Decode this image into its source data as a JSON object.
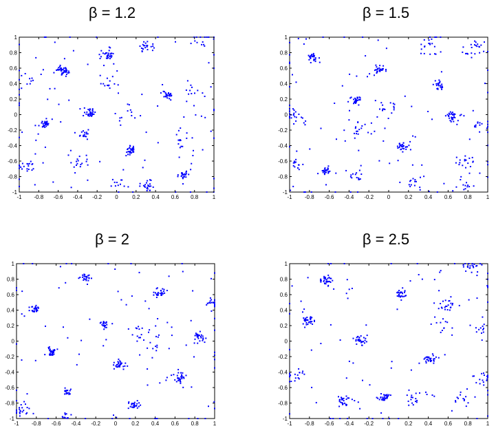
{
  "colors": {
    "points": "#0000ff",
    "axes": "#000000",
    "background": "#ffffff"
  },
  "chart_data": [
    {
      "type": "scatter",
      "title": "β = 1.2",
      "xlim": [
        -1,
        1
      ],
      "ylim": [
        -1,
        1
      ],
      "xticks": [
        "-1",
        "-0.8",
        "-0.6",
        "-0.4",
        "-0.2",
        "0",
        "0.2",
        "0.4",
        "0.6",
        "0.8",
        "1"
      ],
      "yticks": [
        "1",
        "0.8",
        "0.6",
        "0.4",
        "0.2",
        "0",
        "-0.2",
        "-0.4",
        "-0.6",
        "-0.8",
        "-1"
      ],
      "grid": false,
      "clusters": [
        {
          "x": -0.55,
          "y": 0.57,
          "count": 40,
          "spread": 0.03
        },
        {
          "x": -0.1,
          "y": 0.78,
          "count": 30,
          "spread": 0.04
        },
        {
          "x": 0.28,
          "y": 0.86,
          "count": 22,
          "spread": 0.04
        },
        {
          "x": -0.08,
          "y": 0.43,
          "count": 12,
          "spread": 0.05
        },
        {
          "x": 0.52,
          "y": 0.25,
          "count": 25,
          "spread": 0.025
        },
        {
          "x": -0.28,
          "y": 0.03,
          "count": 30,
          "spread": 0.03
        },
        {
          "x": -0.73,
          "y": -0.12,
          "count": 35,
          "spread": 0.025
        },
        {
          "x": -0.32,
          "y": -0.26,
          "count": 15,
          "spread": 0.03
        },
        {
          "x": 0.15,
          "y": -0.46,
          "count": 30,
          "spread": 0.03
        },
        {
          "x": -0.4,
          "y": -0.62,
          "count": 15,
          "spread": 0.05
        },
        {
          "x": -0.92,
          "y": -0.67,
          "count": 18,
          "spread": 0.04
        },
        {
          "x": 0.32,
          "y": -0.91,
          "count": 22,
          "spread": 0.04
        },
        {
          "x": 0.7,
          "y": -0.78,
          "count": 22,
          "spread": 0.03
        },
        {
          "x": 0.78,
          "y": 0.32,
          "count": 10,
          "spread": 0.08
        },
        {
          "x": 0.1,
          "y": 0.05,
          "count": 10,
          "spread": 0.07
        },
        {
          "x": 0.68,
          "y": -0.3,
          "count": 14,
          "spread": 0.06
        },
        {
          "x": 0.0,
          "y": -0.9,
          "count": 10,
          "spread": 0.05
        },
        {
          "x": -0.9,
          "y": 0.45,
          "count": 8,
          "spread": 0.05
        },
        {
          "x": 0.85,
          "y": 0.95,
          "count": 14,
          "spread": 0.06
        }
      ],
      "scatter_points": 70
    },
    {
      "type": "scatter",
      "title": "β = 1.5",
      "xlim": [
        -1,
        1
      ],
      "ylim": [
        -1,
        1
      ],
      "xticks": [
        "-1",
        "-0.8",
        "-0.6",
        "-0.4",
        "-0.2",
        "0",
        "0.2",
        "0.4",
        "0.6",
        "0.8",
        "1"
      ],
      "yticks": [
        "1",
        "0.8",
        "0.6",
        "0.4",
        "0.2",
        "0",
        "-0.2",
        "-0.4",
        "-0.6",
        "-0.8",
        "-1"
      ],
      "grid": false,
      "clusters": [
        {
          "x": -0.77,
          "y": 0.74,
          "count": 25,
          "spread": 0.03
        },
        {
          "x": -0.1,
          "y": 0.57,
          "count": 30,
          "spread": 0.03
        },
        {
          "x": 0.4,
          "y": 0.9,
          "count": 18,
          "spread": 0.05
        },
        {
          "x": 0.85,
          "y": 0.85,
          "count": 20,
          "spread": 0.06
        },
        {
          "x": 0.52,
          "y": 0.38,
          "count": 22,
          "spread": 0.03
        },
        {
          "x": -0.33,
          "y": 0.19,
          "count": 30,
          "spread": 0.03
        },
        {
          "x": 0.0,
          "y": 0.1,
          "count": 15,
          "spread": 0.06
        },
        {
          "x": 0.62,
          "y": -0.02,
          "count": 30,
          "spread": 0.035
        },
        {
          "x": -0.3,
          "y": -0.22,
          "count": 18,
          "spread": 0.08
        },
        {
          "x": 0.15,
          "y": -0.41,
          "count": 28,
          "spread": 0.03
        },
        {
          "x": -0.62,
          "y": -0.72,
          "count": 25,
          "spread": 0.025
        },
        {
          "x": -0.3,
          "y": -0.78,
          "count": 12,
          "spread": 0.05
        },
        {
          "x": 0.25,
          "y": -0.88,
          "count": 14,
          "spread": 0.05
        },
        {
          "x": 0.75,
          "y": -0.6,
          "count": 16,
          "spread": 0.05
        },
        {
          "x": 0.75,
          "y": -0.92,
          "count": 12,
          "spread": 0.05
        },
        {
          "x": -0.95,
          "y": 0.0,
          "count": 20,
          "spread": 0.05
        },
        {
          "x": -0.92,
          "y": -0.65,
          "count": 12,
          "spread": 0.04
        },
        {
          "x": 0.9,
          "y": -0.15,
          "count": 12,
          "spread": 0.06
        }
      ],
      "scatter_points": 70
    },
    {
      "type": "scatter",
      "title": "β = 2",
      "xlim": [
        -1,
        1
      ],
      "ylim": [
        -1,
        1
      ],
      "xticks": [
        "-1",
        "-0.8",
        "-0.6",
        "-0.4",
        "-0.2",
        "0",
        "0.2",
        "0.4",
        "0.6",
        "0.8",
        "1"
      ],
      "yticks": [
        "1",
        "0.8",
        "0.6",
        "0.4",
        "0.2",
        "0",
        "-0.2",
        "-0.4",
        "-0.6",
        "-0.8",
        "-1"
      ],
      "grid": false,
      "clusters": [
        {
          "x": -0.3,
          "y": 0.83,
          "count": 22,
          "spread": 0.025
        },
        {
          "x": 0.44,
          "y": 0.63,
          "count": 28,
          "spread": 0.03
        },
        {
          "x": -0.82,
          "y": 0.41,
          "count": 28,
          "spread": 0.025
        },
        {
          "x": -0.12,
          "y": 0.22,
          "count": 20,
          "spread": 0.025
        },
        {
          "x": 0.28,
          "y": 0.1,
          "count": 18,
          "spread": 0.06
        },
        {
          "x": 0.85,
          "y": 0.05,
          "count": 28,
          "spread": 0.035
        },
        {
          "x": -0.65,
          "y": -0.13,
          "count": 30,
          "spread": 0.03
        },
        {
          "x": 0.03,
          "y": -0.3,
          "count": 30,
          "spread": 0.035
        },
        {
          "x": 0.65,
          "y": -0.48,
          "count": 28,
          "spread": 0.035
        },
        {
          "x": -0.48,
          "y": -0.65,
          "count": 20,
          "spread": 0.025
        },
        {
          "x": 0.2,
          "y": -0.83,
          "count": 25,
          "spread": 0.03
        },
        {
          "x": -0.5,
          "y": -0.98,
          "count": 10,
          "spread": 0.02
        },
        {
          "x": -0.97,
          "y": -0.9,
          "count": 20,
          "spread": 0.04
        },
        {
          "x": 0.98,
          "y": 0.5,
          "count": 20,
          "spread": 0.03
        },
        {
          "x": 0.4,
          "y": -0.1,
          "count": 8,
          "spread": 0.06
        }
      ],
      "scatter_points": 60
    },
    {
      "type": "scatter",
      "title": "β = 2.5",
      "xlim": [
        -1,
        1
      ],
      "ylim": [
        -1,
        1
      ],
      "xticks": [
        "-1",
        "-0.8",
        "-0.6",
        "-0.4",
        "-0.2",
        "0",
        "0.2",
        "0.4",
        "0.6",
        "0.8",
        "1"
      ],
      "yticks": [
        "1",
        "0.8",
        "0.6",
        "0.4",
        "0.2",
        "0",
        "-0.2",
        "-0.4",
        "-0.6",
        "-0.8",
        "-1"
      ],
      "grid": false,
      "clusters": [
        {
          "x": -0.62,
          "y": 0.79,
          "count": 30,
          "spread": 0.035
        },
        {
          "x": 0.13,
          "y": 0.61,
          "count": 28,
          "spread": 0.03
        },
        {
          "x": 0.58,
          "y": 0.47,
          "count": 20,
          "spread": 0.04
        },
        {
          "x": -0.82,
          "y": 0.27,
          "count": 30,
          "spread": 0.035
        },
        {
          "x": -0.27,
          "y": 0.01,
          "count": 28,
          "spread": 0.03
        },
        {
          "x": 0.42,
          "y": -0.22,
          "count": 30,
          "spread": 0.035
        },
        {
          "x": -0.45,
          "y": -0.78,
          "count": 28,
          "spread": 0.04
        },
        {
          "x": -0.05,
          "y": -0.73,
          "count": 30,
          "spread": 0.03
        },
        {
          "x": 0.25,
          "y": -0.72,
          "count": 16,
          "spread": 0.05
        },
        {
          "x": 0.75,
          "y": -0.75,
          "count": 14,
          "spread": 0.06
        },
        {
          "x": 0.85,
          "y": 0.98,
          "count": 22,
          "spread": 0.05
        },
        {
          "x": 0.9,
          "y": 0.15,
          "count": 12,
          "spread": 0.06
        },
        {
          "x": -0.95,
          "y": -0.45,
          "count": 18,
          "spread": 0.05
        },
        {
          "x": 0.95,
          "y": -0.5,
          "count": 16,
          "spread": 0.04
        },
        {
          "x": 0.6,
          "y": 0.2,
          "count": 10,
          "spread": 0.05
        }
      ],
      "scatter_points": 60
    }
  ]
}
